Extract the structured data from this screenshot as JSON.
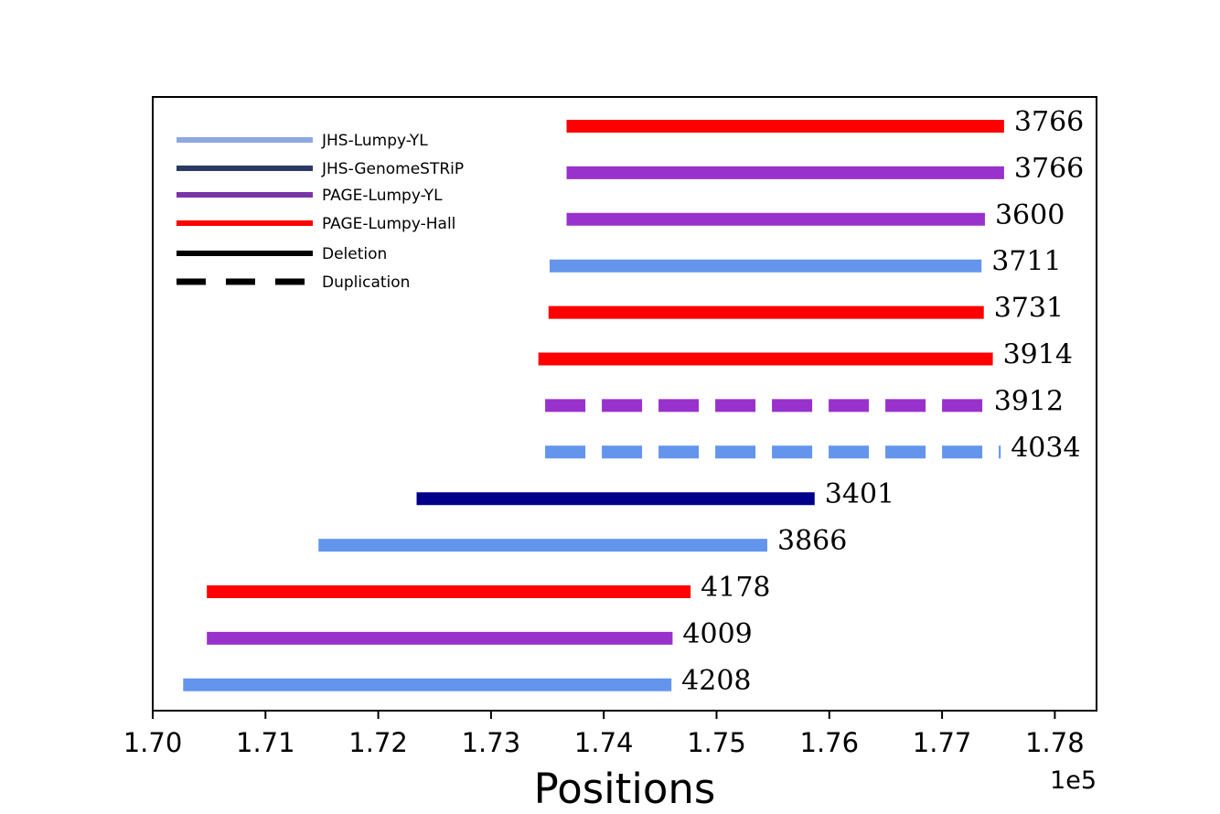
{
  "chart_data": {
    "type": "segments",
    "xlabel": "Positions",
    "x_offset_label": "1e5",
    "xlim": [
      1.7,
      1.784
    ],
    "x_ticks": [
      1.7,
      1.71,
      1.72,
      1.73,
      1.74,
      1.75,
      1.76,
      1.77,
      1.78
    ],
    "x_tick_labels": [
      "1.70",
      "1.71",
      "1.72",
      "1.73",
      "1.74",
      "1.75",
      "1.76",
      "1.77",
      "1.78"
    ],
    "colors": {
      "JHS-Lumpy-YL": "#6495ED",
      "JHS-GenomeSTRiP": "#00008B",
      "PAGE-Lumpy-YL": "#9932CC",
      "PAGE-Lumpy-Hall": "#FF0000"
    },
    "legend": [
      {
        "label": "JHS-Lumpy-YL",
        "color": "#8FA8E0",
        "style": "solid"
      },
      {
        "label": "JHS-GenomeSTRiP",
        "color": "#2B3A64",
        "style": "solid"
      },
      {
        "label": "PAGE-Lumpy-YL",
        "color": "#7B33A8",
        "style": "solid"
      },
      {
        "label": "PAGE-Lumpy-Hall",
        "color": "#FF0000",
        "style": "solid"
      },
      {
        "label": "Deletion",
        "color": "#000000",
        "style": "solid"
      },
      {
        "label": "Duplication",
        "color": "#000000",
        "style": "dashed"
      }
    ],
    "segments": [
      {
        "start": 1.7367,
        "end": 1.7755,
        "label": "3766",
        "source": "PAGE-Lumpy-Hall",
        "type": "Deletion"
      },
      {
        "start": 1.7367,
        "end": 1.7755,
        "label": "3766",
        "source": "PAGE-Lumpy-YL",
        "type": "Deletion"
      },
      {
        "start": 1.7367,
        "end": 1.7738,
        "label": "3600",
        "source": "PAGE-Lumpy-YL",
        "type": "Deletion"
      },
      {
        "start": 1.7352,
        "end": 1.7735,
        "label": "3711",
        "source": "JHS-Lumpy-YL",
        "type": "Deletion"
      },
      {
        "start": 1.7351,
        "end": 1.7737,
        "label": "3731",
        "source": "PAGE-Lumpy-Hall",
        "type": "Deletion"
      },
      {
        "start": 1.7342,
        "end": 1.7745,
        "label": "3914",
        "source": "PAGE-Lumpy-Hall",
        "type": "Deletion"
      },
      {
        "start": 1.7348,
        "end": 1.7737,
        "label": "3912",
        "source": "PAGE-Lumpy-YL",
        "type": "Duplication"
      },
      {
        "start": 1.7348,
        "end": 1.7752,
        "label": "4034",
        "source": "JHS-Lumpy-YL",
        "type": "Duplication"
      },
      {
        "start": 1.7234,
        "end": 1.7587,
        "label": "3401",
        "source": "JHS-GenomeSTRiP",
        "type": "Deletion"
      },
      {
        "start": 1.7147,
        "end": 1.7545,
        "label": "3866",
        "source": "JHS-Lumpy-YL",
        "type": "Deletion"
      },
      {
        "start": 1.7048,
        "end": 1.7477,
        "label": "4178",
        "source": "PAGE-Lumpy-Hall",
        "type": "Deletion"
      },
      {
        "start": 1.7048,
        "end": 1.7461,
        "label": "4009",
        "source": "PAGE-Lumpy-YL",
        "type": "Deletion"
      },
      {
        "start": 1.7027,
        "end": 1.746,
        "label": "4208",
        "source": "JHS-Lumpy-YL",
        "type": "Deletion"
      }
    ]
  }
}
